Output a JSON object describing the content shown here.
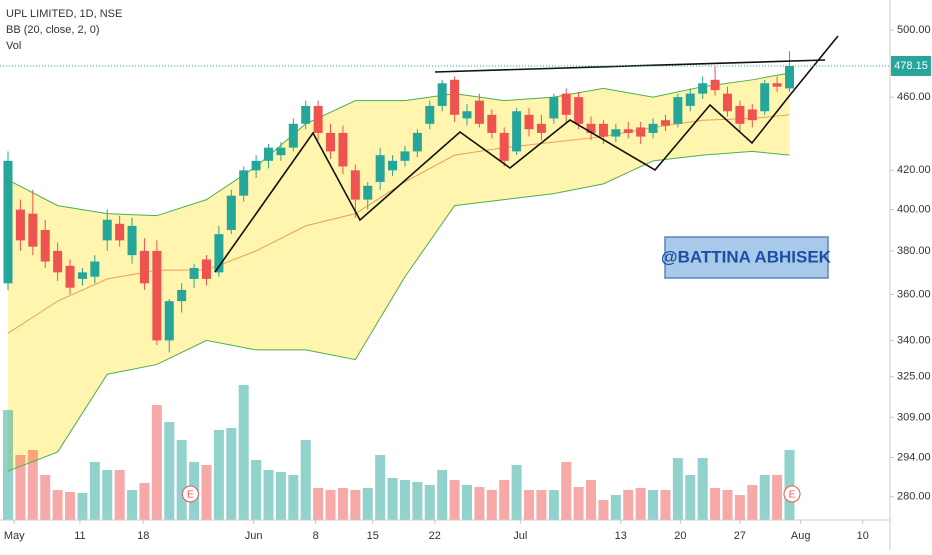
{
  "chart_data": {
    "type": "candlestick",
    "title": "UPL LIMITED, 1D, NSE",
    "indicator_label": "BB (20, close, 2, 0)",
    "volume_label": "Vol",
    "watermark": "@BATTINA ABHISEK",
    "log_scale": true,
    "ylim": [
      272,
      519
    ],
    "yticks": [
      {
        "value": 500,
        "label": "500.00"
      },
      {
        "value": 460,
        "label": "460.00"
      },
      {
        "value": 420,
        "label": "420.00"
      },
      {
        "value": 400,
        "label": "400.00"
      },
      {
        "value": 380,
        "label": "380.00"
      },
      {
        "value": 360,
        "label": "360.00"
      },
      {
        "value": 340,
        "label": "340.00"
      },
      {
        "value": 325,
        "label": "325.00"
      },
      {
        "value": 309,
        "label": "309.00"
      },
      {
        "value": 294,
        "label": "294.00"
      },
      {
        "value": 280,
        "label": "280.00"
      }
    ],
    "xlim": [
      -0.645,
      71.1
    ],
    "xticks": [
      {
        "value": 0.5,
        "label": "May"
      },
      {
        "value": 5.8,
        "label": "11"
      },
      {
        "value": 10.9,
        "label": "18"
      },
      {
        "value": 19.8,
        "label": "Jun"
      },
      {
        "value": 24.8,
        "label": "8"
      },
      {
        "value": 29.4,
        "label": "15"
      },
      {
        "value": 34.4,
        "label": "22"
      },
      {
        "value": 41.3,
        "label": "Jul"
      },
      {
        "value": 49.4,
        "label": "13"
      },
      {
        "value": 54.2,
        "label": "20"
      },
      {
        "value": 59.0,
        "label": "27"
      },
      {
        "value": 63.9,
        "label": "Aug"
      },
      {
        "value": 68.9,
        "label": "10"
      }
    ],
    "up_color": "#26a69a",
    "down_color": "#ef5350",
    "open": [
      365,
      400,
      398,
      390,
      380,
      373,
      367,
      368,
      385,
      393,
      378,
      380,
      380,
      340,
      357,
      367,
      376,
      370,
      390,
      407,
      420,
      425,
      428,
      432,
      445,
      455,
      440,
      440,
      420,
      405,
      414,
      420,
      425,
      430,
      445,
      455,
      470,
      448,
      458,
      450,
      440,
      430,
      450,
      445,
      448,
      462,
      460,
      445,
      445,
      438,
      442,
      443,
      440,
      447,
      445,
      455,
      462,
      470,
      462,
      455,
      453,
      452,
      468,
      465
    ],
    "high": [
      430,
      405,
      410,
      395,
      384,
      376,
      372,
      378,
      400,
      397,
      396,
      386,
      385,
      358,
      365,
      374,
      378,
      392,
      410,
      422,
      428,
      434,
      435,
      448,
      458,
      458,
      445,
      444,
      423,
      414,
      432,
      428,
      433,
      442,
      458,
      470,
      472,
      456,
      462,
      453,
      443,
      454,
      454,
      450,
      462,
      465,
      463,
      449,
      447,
      445,
      446,
      446,
      448,
      450,
      462,
      465,
      472,
      478,
      466,
      458,
      456,
      470,
      472,
      487
    ],
    "low": [
      362,
      380,
      378,
      372,
      366,
      360,
      364,
      365,
      380,
      382,
      374,
      362,
      338,
      335,
      352,
      363,
      364,
      368,
      388,
      404,
      416,
      421,
      425,
      430,
      442,
      436,
      426,
      418,
      396,
      400,
      410,
      417,
      422,
      427,
      442,
      452,
      446,
      444,
      443,
      437,
      422,
      428,
      438,
      436,
      445,
      446,
      442,
      436,
      434,
      435,
      437,
      434,
      437,
      441,
      443,
      452,
      459,
      461,
      449,
      441,
      443,
      450,
      463,
      463
    ],
    "close": [
      425,
      385,
      382,
      375,
      370,
      363,
      370,
      375,
      395,
      385,
      392,
      365,
      340,
      357,
      362,
      372,
      367,
      388,
      407,
      420,
      425,
      432,
      432,
      445,
      455,
      440,
      430,
      422,
      405,
      412,
      428,
      425,
      430,
      440,
      455,
      468,
      450,
      452,
      445,
      440,
      425,
      452,
      442,
      440,
      460,
      450,
      445,
      440,
      438,
      442,
      440,
      438,
      445,
      444,
      460,
      462,
      468,
      464,
      452,
      445,
      447,
      468,
      466,
      478.15
    ],
    "volume": [
      110,
      65,
      70,
      45,
      30,
      28,
      27,
      58,
      50,
      50,
      30,
      37,
      115,
      98,
      80,
      58,
      55,
      90,
      92,
      135,
      60,
      50,
      48,
      45,
      80,
      32,
      30,
      32,
      30,
      32,
      65,
      42,
      40,
      38,
      35,
      50,
      40,
      35,
      33,
      30,
      40,
      55,
      30,
      30,
      30,
      58,
      33,
      40,
      20,
      25,
      30,
      32,
      30,
      30,
      62,
      45,
      62,
      32,
      30,
      25,
      35,
      45,
      45,
      70
    ],
    "last_price": 478.15,
    "bands": {
      "x": [
        0,
        4,
        8,
        12,
        16,
        20,
        24,
        28,
        32,
        36,
        40,
        44,
        48,
        52,
        56,
        60,
        63
      ],
      "upper": {
        "color": "#4caf50",
        "values": [
          415,
          402,
          398,
          397,
          405,
          422,
          445,
          458,
          458,
          462,
          458,
          460,
          465,
          460,
          466,
          470,
          474
        ]
      },
      "middle": {
        "color": "#e8a05a",
        "values": [
          343,
          357,
          367,
          371,
          371,
          380,
          392,
          398,
          414,
          428,
          432,
          435,
          438,
          443,
          447,
          448,
          450
        ]
      },
      "lower": {
        "color": "#4caf50",
        "values": [
          289,
          296,
          326,
          330,
          340,
          336,
          336,
          332,
          368,
          402,
          405,
          408,
          413,
          425,
          428,
          430,
          428
        ]
      },
      "fill": "#fff3a0"
    },
    "earnings": [
      {
        "x": 14.7,
        "label": "E"
      },
      {
        "x": 63.2,
        "label": "E"
      }
    ]
  }
}
